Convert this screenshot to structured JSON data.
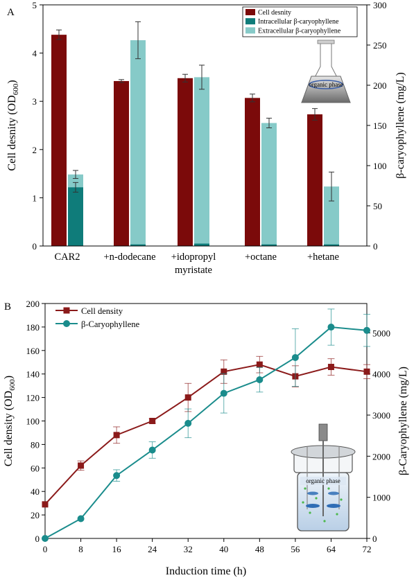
{
  "colors": {
    "cell": "#7b0a0a",
    "intra": "#0f7c7a",
    "extra": "#86cac8",
    "line_cell": "#8b1a1a",
    "line_bc": "#1a8c8c"
  },
  "chart_data": [
    {
      "panel": "A",
      "type": "bar",
      "categories": [
        "CAR2",
        "+n-dodecane",
        "+idopropyl myristate",
        "+octane",
        "+hetane"
      ],
      "category_lines": [
        [
          "CAR2"
        ],
        [
          "+n-dodecane"
        ],
        [
          "+idopropyl",
          "myristate"
        ],
        [
          "+octane"
        ],
        [
          "+hetane"
        ]
      ],
      "ylabel": "Cell desnity (OD600)",
      "ylabel_main": "Cell desnity (OD",
      "ylabel_sub": "600",
      "ylabel_close": ")",
      "y2label": "β-caryophyllene (mg/L)",
      "ylim": [
        0,
        5
      ],
      "y2lim": [
        0,
        300
      ],
      "yticks": [
        0,
        1,
        2,
        3,
        4,
        5
      ],
      "y2ticks": [
        0,
        50,
        100,
        150,
        200,
        250,
        300
      ],
      "legend_position": "top-right",
      "inset_label": "organic phase",
      "series": [
        {
          "name": "Cell desnity",
          "axis": "left",
          "values": [
            4.38,
            3.42,
            3.48,
            3.07,
            2.73
          ],
          "errors": [
            0.1,
            0.03,
            0.08,
            0.08,
            0.12
          ]
        },
        {
          "name": "Intracellular β-caryophyllene",
          "axis": "right",
          "values": [
            73,
            2,
            3,
            2,
            2
          ],
          "errors": [
            6,
            0,
            0,
            0,
            0
          ]
        },
        {
          "name": "Extracellular β-caryophyllene",
          "axis": "right",
          "values": [
            89,
            256,
            210,
            153,
            74
          ],
          "errors": [
            5,
            23,
            15,
            6,
            18
          ]
        }
      ]
    },
    {
      "panel": "B",
      "type": "line",
      "xlabel": "Induction time (h)",
      "ylabel": "Cell density (OD600)",
      "ylabel_main": "Cell density (OD",
      "ylabel_sub": "600",
      "ylabel_close": ")",
      "y2label": "β-Caryophyllene (mg/L)",
      "x": [
        0,
        8,
        16,
        24,
        32,
        40,
        48,
        56,
        64,
        72
      ],
      "xlim": [
        0,
        72
      ],
      "ylim": [
        0,
        200
      ],
      "y2lim": [
        0,
        5714
      ],
      "yticks": [
        0,
        20,
        40,
        60,
        80,
        100,
        120,
        140,
        160,
        180,
        200
      ],
      "y2ticks": [
        0,
        1000,
        2000,
        3000,
        4000,
        5000
      ],
      "legend_position": "top-left",
      "inset_label": "organic phase",
      "series": [
        {
          "name": "Cell density",
          "axis": "left",
          "values": [
            29,
            62,
            88,
            100,
            120,
            142,
            148,
            138,
            146,
            142
          ],
          "errors": [
            0,
            4,
            7,
            2,
            12,
            10,
            7,
            9,
            7,
            6
          ]
        },
        {
          "name": "β-Caryophyllene",
          "axis": "right",
          "values": [
            0,
            480,
            1530,
            2150,
            2800,
            3530,
            3860,
            4400,
            5140,
            5060
          ],
          "errors": [
            0,
            0,
            140,
            200,
            350,
            480,
            300,
            700,
            440,
            390
          ]
        }
      ]
    }
  ],
  "panels": {
    "a_label": "A",
    "b_label": "B"
  }
}
